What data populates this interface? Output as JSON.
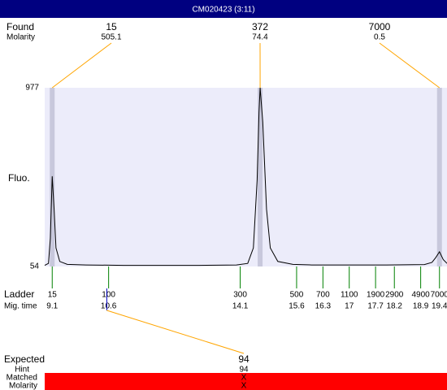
{
  "header": {
    "title": "CM020423 (3:11)"
  },
  "chart_data": {
    "type": "line",
    "y_label": "Fluo.",
    "color": "#000000",
    "xlim": [
      8.9,
      19.6
    ],
    "ylim": [
      54,
      977
    ],
    "yticks": [
      54,
      977
    ],
    "x": [
      8.9,
      9.0,
      9.05,
      9.1,
      9.15,
      9.2,
      9.3,
      9.5,
      10,
      11,
      12,
      13,
      14,
      14.3,
      14.45,
      14.55,
      14.6,
      14.63,
      14.7,
      14.8,
      14.9,
      15.1,
      15.5,
      16,
      17,
      18,
      19,
      19.2,
      19.3,
      19.4,
      19.5,
      19.6
    ],
    "values": [
      60,
      70,
      200,
      520,
      350,
      150,
      80,
      65,
      62,
      60,
      60,
      60,
      62,
      70,
      150,
      500,
      850,
      977,
      800,
      350,
      150,
      80,
      65,
      62,
      62,
      62,
      64,
      75,
      100,
      130,
      90,
      70
    ],
    "found": {
      "label": "Found",
      "molarity_label": "Molarity",
      "sizes": [
        15,
        372,
        7000
      ],
      "molarities": [
        505.1,
        74.4,
        0.5
      ],
      "times": [
        9.1,
        14.63,
        19.4
      ]
    },
    "ladder": {
      "label": "Ladder",
      "time_label": "Mig. time",
      "sizes": [
        15,
        100,
        300,
        500,
        700,
        1100,
        1900,
        2900,
        4900,
        7000
      ],
      "times": [
        9.1,
        10.6,
        14.1,
        15.6,
        16.3,
        17,
        17.7,
        18.2,
        18.9,
        19.4
      ]
    },
    "expected": {
      "label": "Expected",
      "hint_label": "Hint",
      "matched_label": "Matched",
      "molarity_label": "Molarity",
      "value": 94,
      "hint": 94,
      "matched": "X",
      "molarity": "X"
    }
  }
}
